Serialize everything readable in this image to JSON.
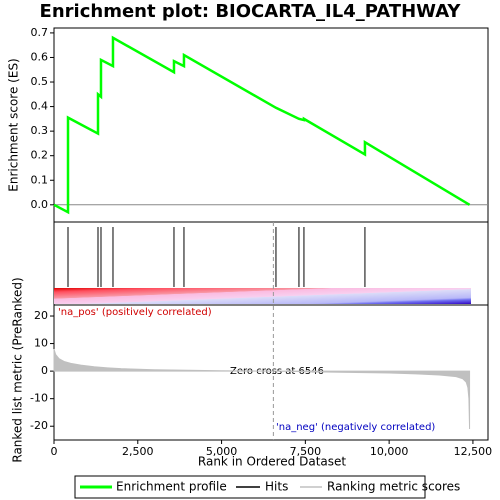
{
  "chart_data": [
    {
      "type": "line",
      "title": "Enrichment plot: BIOCARTA_IL4_PATHWAY",
      "ylabel": "Enrichment score (ES)",
      "xlim": [
        0,
        12950
      ],
      "ylim": [
        -0.07,
        0.72
      ],
      "yticks": [
        {
          "value": 0,
          "label": "0.0"
        },
        0.1,
        0.2,
        0.3,
        0.4,
        0.5,
        0.6,
        0.7
      ],
      "x": [
        0,
        418,
        418,
        1313,
        1313,
        1402,
        1402,
        1760,
        1760,
        3580,
        3580,
        3878,
        3878,
        6623,
        7309,
        7458,
        7458,
        9278,
        9278,
        12400
      ],
      "series": [
        {
          "name": "Enrichment profile",
          "color": "#00ff00",
          "values": [
            0,
            -0.03,
            0.355,
            0.29,
            0.45,
            0.44,
            0.59,
            0.565,
            0.68,
            0.54,
            0.585,
            0.565,
            0.61,
            0.395,
            0.35,
            0.345,
            0.35,
            0.205,
            0.255,
            0
          ]
        }
      ],
      "hits": {
        "name": "Hits",
        "color": "#000000",
        "x": [
          418,
          1313,
          1402,
          1760,
          3580,
          3878,
          6623,
          7309,
          7458,
          9278
        ]
      }
    },
    {
      "type": "area",
      "ylabel": "Ranked list metric (PreRanked)",
      "xlabel": "Rank in Ordered Dataset",
      "xlim": [
        0,
        12950
      ],
      "ylim": [
        -25,
        24
      ],
      "xticks": [
        0,
        {
          "value": 2500,
          "label": "2,500"
        },
        {
          "value": 5000,
          "label": "5,000"
        },
        {
          "value": 7500,
          "label": "7,500"
        },
        {
          "value": 10000,
          "label": "10,000"
        },
        {
          "value": 12500,
          "label": "12,500"
        }
      ],
      "yticks": [
        -20,
        -10,
        0,
        10,
        20
      ],
      "x": [
        0,
        50,
        150,
        300,
        500,
        800,
        1200,
        1600,
        2000,
        3000,
        4000,
        5000,
        6546,
        8000,
        9000,
        10000,
        10800,
        11500,
        12000,
        12200,
        12300,
        12350,
        12380,
        12400
      ],
      "series": [
        {
          "name": "Ranking metric scores",
          "color": "#c0c0c0",
          "values": [
            8,
            6,
            4.5,
            3.5,
            2.8,
            2.2,
            1.6,
            1.2,
            0.9,
            0.5,
            0.3,
            0.15,
            0,
            -0.3,
            -0.5,
            -0.7,
            -1,
            -1.4,
            -2,
            -2.8,
            -4,
            -6,
            -10,
            -21
          ]
        }
      ],
      "zero_cross": 6546,
      "zero_cross_label": "Zero cross at 6546",
      "pos_label": "'na_pos' (positively correlated)",
      "neg_label": "'na_neg' (negatively correlated)"
    }
  ]
}
